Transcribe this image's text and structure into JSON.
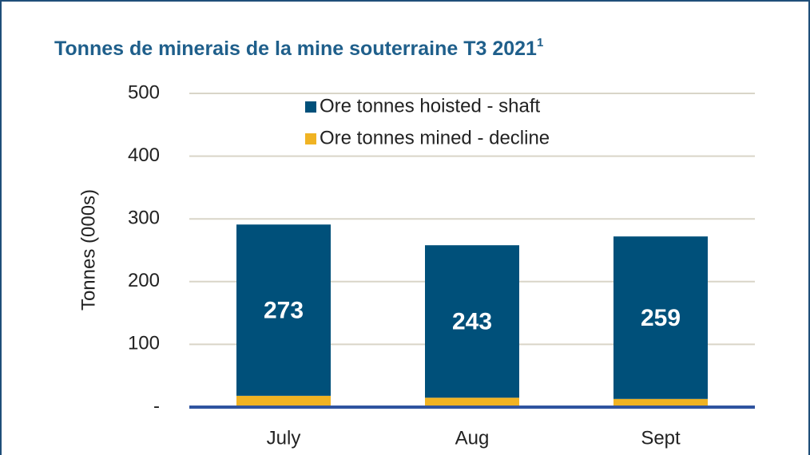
{
  "chart_data": {
    "type": "stacked_bar",
    "title": "Tonnes de minerais de la mine souterraine T3 2021",
    "title_superscript": "1",
    "y_label": "Tonnes (000s)",
    "categories": [
      "July",
      "Aug",
      "Sept"
    ],
    "series": [
      {
        "name": "Ore tonnes mined - decline",
        "color": "#f0b323",
        "values": [
          18,
          15,
          13
        ]
      },
      {
        "name": "Ore tonnes hoisted - shaft",
        "color": "#00507a",
        "values": [
          273,
          243,
          259
        ],
        "show_labels": true
      }
    ],
    "ylim": [
      0,
      500
    ],
    "yticks": [
      {
        "value": 0,
        "label": "-"
      },
      100,
      200,
      300,
      400,
      500
    ],
    "grid": true,
    "legend": "top"
  }
}
